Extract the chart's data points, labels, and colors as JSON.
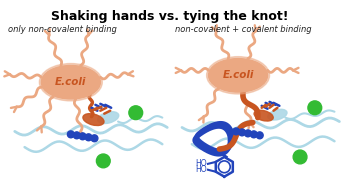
{
  "title": "Shaking hands vs. tying the knot!",
  "subtitle_left": "only non-covalent binding",
  "subtitle_right": "non-covalent + covalent binding",
  "ecoli_color": "#EBA882",
  "ecoli_text": "#C85520",
  "fimbriae_light": "#EBA882",
  "fimbriae_dark": "#C85520",
  "orange_dark": "#C85520",
  "blue_light": "#ADD8E6",
  "blue_dark": "#2244BB",
  "green": "#33BB33",
  "background": "#FFFFFF",
  "title_fontsize": 9,
  "subtitle_fontsize": 6
}
